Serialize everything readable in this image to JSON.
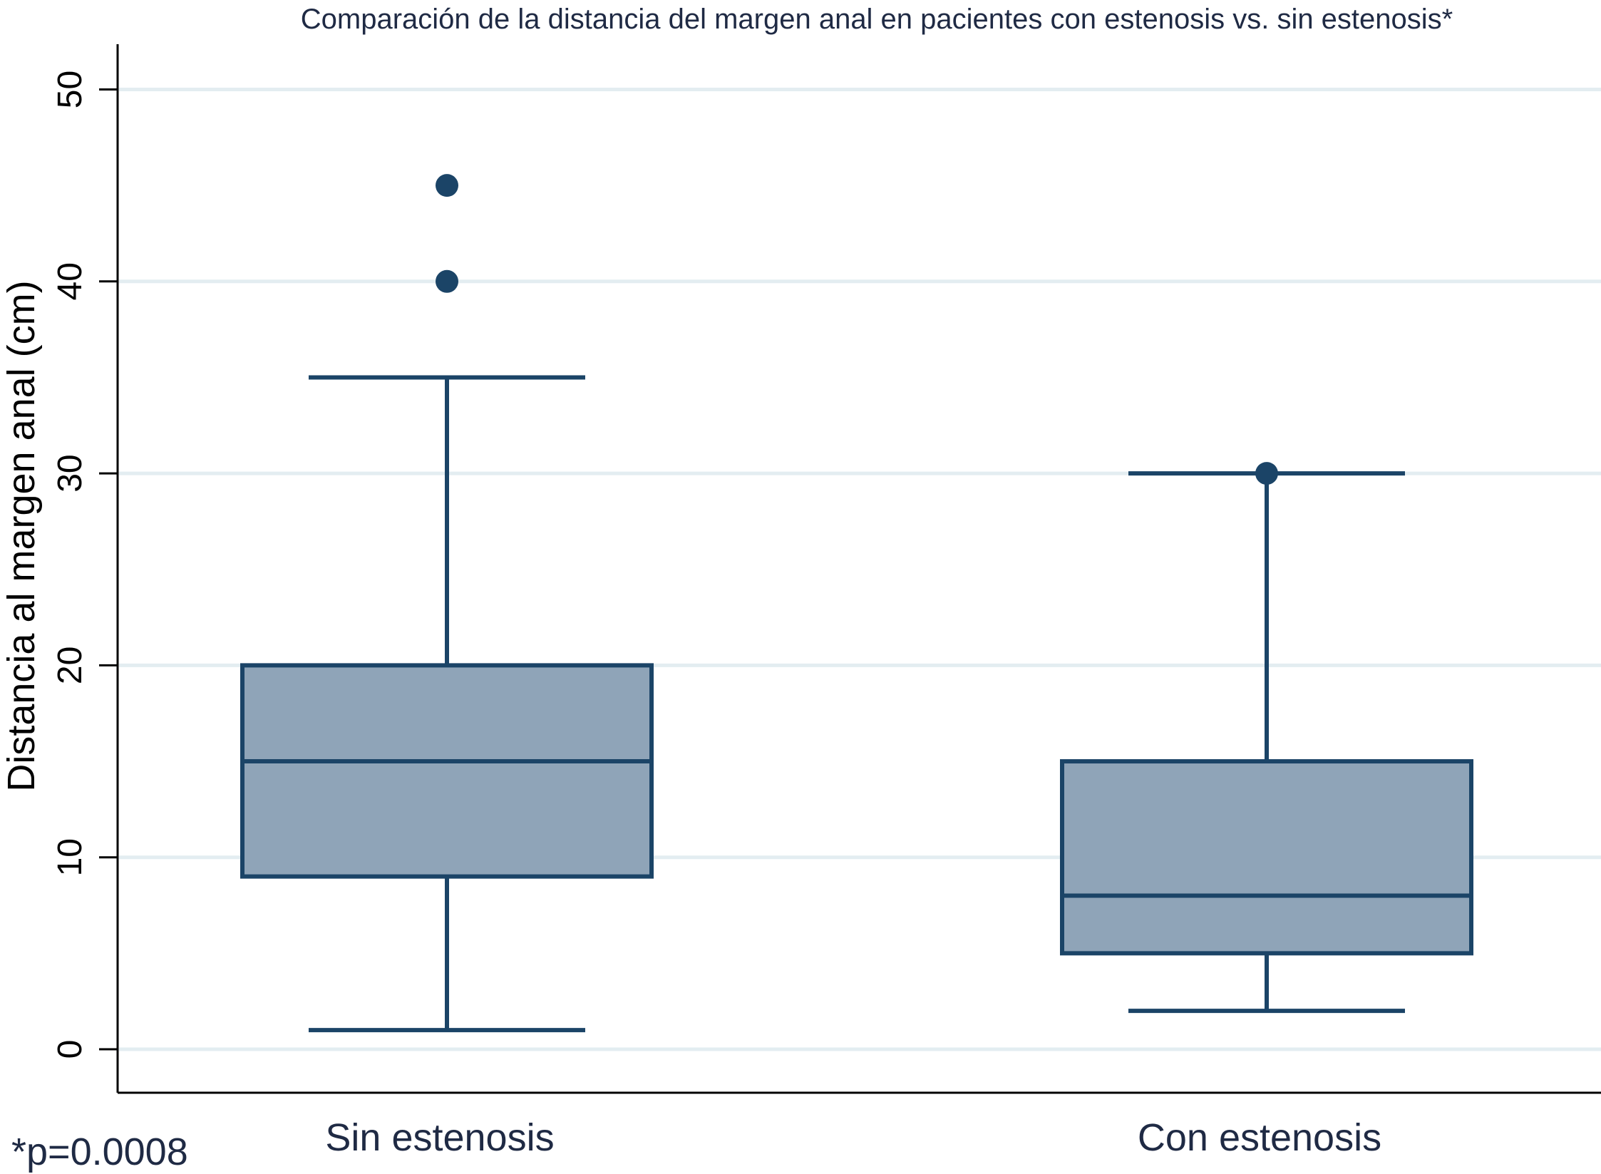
{
  "chart_data": {
    "type": "box",
    "title": "Comparación de la distancia del margen anal en pacientes con estenosis vs. sin estenosis*",
    "xlabel": "",
    "ylabel": "Distancia al margen anal (cm)",
    "ylim": [
      -2.3,
      52.3
    ],
    "yticks": [
      0,
      10,
      20,
      30,
      40,
      50
    ],
    "grid": true,
    "categories": [
      "Sin estenosis",
      "Con estenosis"
    ],
    "boxes": [
      {
        "category": "Sin estenosis",
        "whisker_low": 1,
        "q1": 9,
        "median": 15,
        "q3": 20,
        "whisker_high": 35,
        "outliers": [
          40,
          45
        ]
      },
      {
        "category": "Con estenosis",
        "whisker_low": 2,
        "q1": 5,
        "median": 8,
        "q3": 15,
        "whisker_high": 30,
        "outliers": [
          30
        ]
      }
    ],
    "annotation": "*p=0.0008",
    "colors": {
      "box_fill": "#8fa4b8",
      "line": "#1b4467",
      "grid": "#e3edf1",
      "axis": "#000000",
      "text": "#1f2a44"
    }
  }
}
